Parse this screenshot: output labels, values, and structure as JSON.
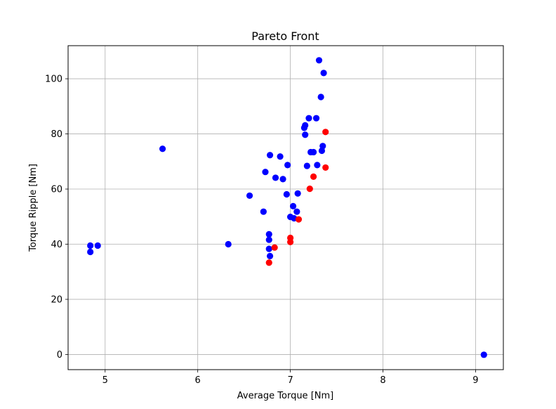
{
  "chart_data": {
    "type": "scatter",
    "title": "Pareto Front",
    "xlabel": "Average Torque [Nm]",
    "ylabel": "Torque Ripple [Nm]",
    "xlim": [
      4.6,
      9.3
    ],
    "ylim": [
      -5.5,
      112
    ],
    "xticks": [
      5,
      6,
      7,
      8,
      9
    ],
    "yticks": [
      0,
      20,
      40,
      60,
      80,
      100
    ],
    "grid": true,
    "series": [
      {
        "color": "#0000ff",
        "points": [
          [
            4.84,
            39.5
          ],
          [
            4.84,
            37.2
          ],
          [
            4.92,
            39.5
          ],
          [
            5.62,
            74.6
          ],
          [
            6.33,
            40.0
          ],
          [
            6.56,
            57.6
          ],
          [
            6.71,
            51.8
          ],
          [
            6.73,
            66.2
          ],
          [
            6.77,
            43.6
          ],
          [
            6.77,
            41.6
          ],
          [
            6.77,
            38.3
          ],
          [
            6.78,
            35.7
          ],
          [
            6.78,
            72.3
          ],
          [
            6.84,
            64.1
          ],
          [
            6.89,
            71.8
          ],
          [
            6.92,
            63.6
          ],
          [
            6.96,
            58.1
          ],
          [
            6.97,
            68.7
          ],
          [
            7.0,
            49.9
          ],
          [
            7.03,
            53.8
          ],
          [
            7.04,
            49.4
          ],
          [
            7.07,
            51.8
          ],
          [
            7.08,
            58.4
          ],
          [
            7.15,
            82.2
          ],
          [
            7.16,
            83.1
          ],
          [
            7.16,
            79.7
          ],
          [
            7.18,
            68.4
          ],
          [
            7.2,
            85.7
          ],
          [
            7.22,
            73.4
          ],
          [
            7.25,
            73.4
          ],
          [
            7.28,
            85.7
          ],
          [
            7.29,
            68.7
          ],
          [
            7.31,
            106.7
          ],
          [
            7.33,
            93.4
          ],
          [
            7.34,
            73.9
          ],
          [
            7.35,
            75.6
          ],
          [
            7.36,
            102.1
          ],
          [
            9.09,
            -0.1
          ]
        ]
      },
      {
        "color": "#ff0000",
        "points": [
          [
            6.77,
            33.3
          ],
          [
            6.83,
            38.8
          ],
          [
            7.0,
            42.3
          ],
          [
            7.0,
            40.8
          ],
          [
            7.09,
            49.0
          ],
          [
            7.21,
            60.1
          ],
          [
            7.25,
            64.5
          ],
          [
            7.38,
            80.7
          ],
          [
            7.38,
            67.8
          ]
        ]
      }
    ]
  }
}
